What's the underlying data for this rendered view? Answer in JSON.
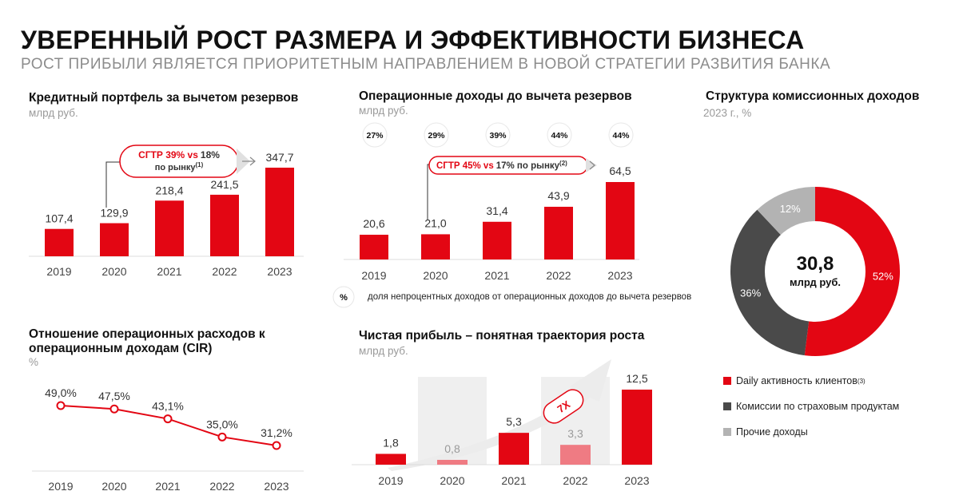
{
  "header": {
    "title": "УВЕРЕННЫЙ РОСТ РАЗМЕРА И ЭФФЕКТИВНОСТИ БИЗНЕСА",
    "subtitle": "РОСТ ПРИБЫЛИ ЯВЛЯЕТСЯ ПРИОРИТЕТНЫМ НАПРАВЛЕНИЕМ В НОВОЙ СТРАТЕГИИ РАЗВИТИЯ БАНКА"
  },
  "colors": {
    "red": "#e30613",
    "light_red": "#ef7b83",
    "dark_gray": "#4a4a4a",
    "light_gray": "#b3b3b3",
    "band": "#efefef"
  },
  "loan": {
    "title": "Кредитный портфель за вычетом резервов",
    "unit": "млрд руб.",
    "cagr_red": "CГТР 39% vs",
    "cagr_black": "18%",
    "cagr_line2": "по рынку",
    "cagr_sup": "(1)"
  },
  "opinc": {
    "title": "Операционные доходы до вычета резервов",
    "unit": "млрд руб.",
    "cagr_red": "CГТР 45% vs",
    "cagr_black": "17% по рынку",
    "cagr_sup": "(2)",
    "legend_symbol": "%",
    "legend_text": "доля непроцентных доходов от операционных доходов до вычета резервов"
  },
  "fees": {
    "title": "Структура комиссионных доходов",
    "unit": "2023 г., %",
    "center_value": "30,8",
    "center_unit": "млрд руб.",
    "legend": [
      {
        "label": "Daily активность клиентов",
        "sup": "(3)",
        "color": "#e30613"
      },
      {
        "label": "Комиссии по страховым продуктам",
        "sup": "",
        "color": "#4a4a4a"
      },
      {
        "label": "Прочие доходы",
        "sup": "",
        "color": "#b3b3b3"
      }
    ]
  },
  "cir": {
    "title_line1": "Отношение операционных расходов к",
    "title_line2": "операционным доходам (CIR)",
    "unit": "%"
  },
  "profit": {
    "title": "Чистая прибыль – понятная траектория роста",
    "unit": "млрд руб.",
    "growth_label": "7X"
  },
  "chart_data": [
    {
      "id": "loan",
      "type": "bar",
      "title": "Кредитный портфель за вычетом резервов",
      "categories": [
        "2019",
        "2020",
        "2021",
        "2022",
        "2023"
      ],
      "values": [
        107.4,
        129.9,
        218.4,
        241.5,
        347.7
      ],
      "labels": [
        "107,4",
        "129,9",
        "218,4",
        "241,5",
        "347,7"
      ]
    },
    {
      "id": "opinc",
      "type": "bar",
      "title": "Операционные доходы до вычета резервов",
      "categories": [
        "2019",
        "2020",
        "2021",
        "2022",
        "2023"
      ],
      "values": [
        20.6,
        21.0,
        31.4,
        43.9,
        64.5
      ],
      "labels": [
        "20,6",
        "21,0",
        "31,4",
        "43,9",
        "64,5"
      ],
      "share_noninterest_pct": [
        "27%",
        "29%",
        "39%",
        "44%",
        "44%"
      ]
    },
    {
      "id": "fees",
      "type": "pie",
      "title": "Структура комиссионных доходов",
      "categories": [
        "Daily активность клиентов",
        "Комиссии по страховым продуктам",
        "Прочие доходы"
      ],
      "values": [
        52,
        36,
        12
      ],
      "labels": [
        "52%",
        "36%",
        "12%"
      ]
    },
    {
      "id": "cir",
      "type": "line",
      "title": "Отношение операционных расходов к операционным доходам (CIR)",
      "categories": [
        "2019",
        "2020",
        "2021",
        "2022",
        "2023"
      ],
      "values": [
        49.0,
        47.5,
        43.1,
        35.0,
        31.2
      ],
      "labels": [
        "49,0%",
        "47,5%",
        "43,1%",
        "35,0%",
        "31,2%"
      ]
    },
    {
      "id": "profit",
      "type": "bar",
      "title": "Чистая прибыль – понятная траектория роста",
      "categories": [
        "2019",
        "2020",
        "2021",
        "2022",
        "2023"
      ],
      "values": [
        1.8,
        0.8,
        5.3,
        3.3,
        12.5
      ],
      "labels": [
        "1,8",
        "0,8",
        "5,3",
        "3,3",
        "12,5"
      ]
    }
  ]
}
